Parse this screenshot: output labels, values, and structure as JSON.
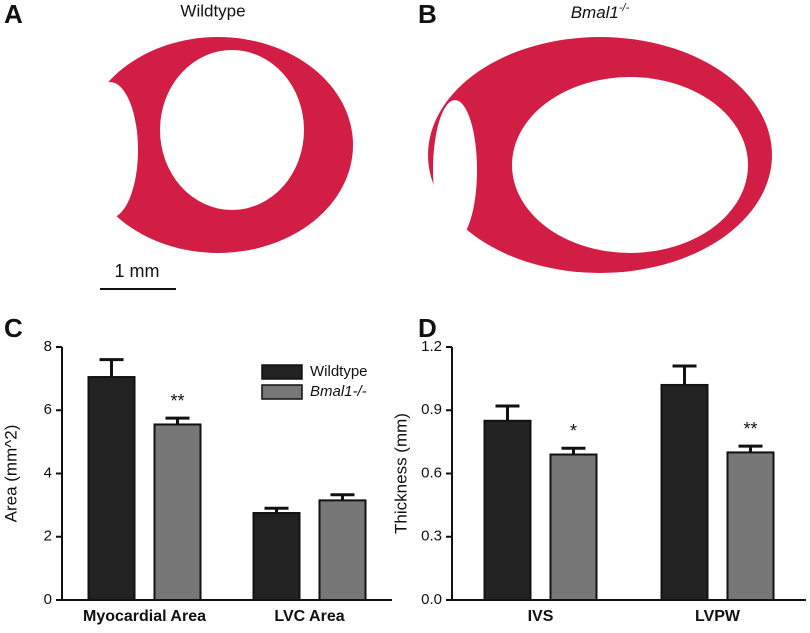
{
  "panels": {
    "a": "A",
    "b": "B",
    "c": "C",
    "d": "D"
  },
  "images": {
    "left_title": "Wildtype",
    "right_title": "Bmal1",
    "right_title_sup": "-/-",
    "scale_bar": "1 mm"
  },
  "chart_data": [
    {
      "type": "bar",
      "ylabel": "Area (mm^2)",
      "categories": [
        "Myocardial Area",
        "LVC Area"
      ],
      "series": [
        {
          "name": "Wildtype",
          "color": "#222222",
          "values": [
            7.05,
            2.75
          ],
          "errors": [
            0.55,
            0.15
          ]
        },
        {
          "name": "Bmal1-/-",
          "color": "#777777",
          "values": [
            5.55,
            3.15
          ],
          "errors": [
            0.2,
            0.18
          ],
          "significance": [
            "**",
            null
          ]
        }
      ],
      "ylim": [
        0,
        8
      ],
      "yticks": [
        0,
        2,
        4,
        6,
        8
      ],
      "grid": false,
      "legend": "upper right"
    },
    {
      "type": "bar",
      "ylabel": "Thickness (mm)",
      "categories": [
        "IVS",
        "LVPW"
      ],
      "series": [
        {
          "name": "Wildtype",
          "color": "#222222",
          "values": [
            0.85,
            1.02
          ],
          "errors": [
            0.07,
            0.09
          ]
        },
        {
          "name": "Bmal1-/-",
          "color": "#777777",
          "values": [
            0.69,
            0.7
          ],
          "errors": [
            0.03,
            0.03
          ],
          "significance": [
            "*",
            "**"
          ]
        }
      ],
      "ylim": [
        0,
        1.2
      ],
      "yticks": [
        {
          "value": 0,
          "label": "0.0"
        },
        0.3,
        0.6,
        0.9,
        1.2
      ],
      "grid": false
    }
  ]
}
